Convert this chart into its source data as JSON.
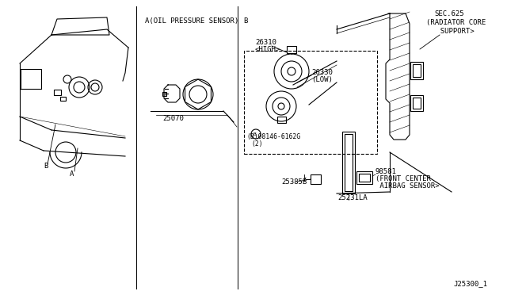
{
  "title": "J25300_1",
  "bg_color": "#ffffff",
  "fg_color": "#000000",
  "sections": {
    "section_a_label": "A(OIL PRESSURE SENSOR)",
    "section_b_label": "B",
    "sec_625_line1": "SEC.625",
    "sec_625_line2": "(RADIATOR CORE",
    "sec_625_line3": "  SUPPORT>",
    "part_25070": "25070",
    "part_26310_l1": "26310",
    "part_26310_l2": "<HIGH>",
    "part_26330_l1": "26330",
    "part_26330_l2": "(LOW)",
    "part_08146_l1": "(B)08146-6162G",
    "part_08146_l2": "(2)",
    "part_25385B": "25385B",
    "part_25231LA": "25231LA",
    "part_98581_l1": "98581",
    "part_98581_l2": "(FRONT CENTER",
    "part_98581_l3": " AIRBAG SENSOR>",
    "label_A": "A",
    "label_B": "B"
  },
  "figsize": [
    6.4,
    3.72
  ],
  "dpi": 100
}
